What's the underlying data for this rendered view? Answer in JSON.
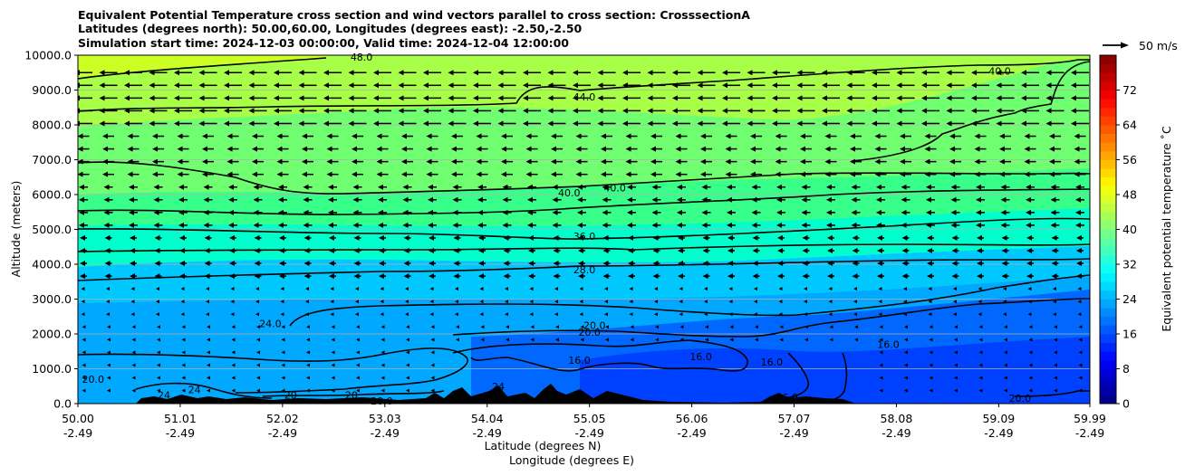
{
  "chart_data": {
    "type": "heatmap",
    "title": [
      "Equivalent Potential Temperature cross section and wind vectors parallel to cross section: CrosssectionA",
      "Latitudes (degrees north): 50.00,60.00, Longitudes (degrees east): -2.50,-2.50",
      "Simulation start time: 2024-12-03 00:00:00, Valid time: 2024-12-04 12:00:00"
    ],
    "xlabel": [
      "Latitude (degrees N)",
      "Longitude (degrees E)"
    ],
    "ylabel": "Altitude (meters)",
    "x_ticks": [
      {
        "lat": "50.00",
        "lon": "-2.49"
      },
      {
        "lat": "51.01",
        "lon": "-2.49"
      },
      {
        "lat": "52.02",
        "lon": "-2.49"
      },
      {
        "lat": "53.03",
        "lon": "-2.49"
      },
      {
        "lat": "54.04",
        "lon": "-2.49"
      },
      {
        "lat": "55.05",
        "lon": "-2.49"
      },
      {
        "lat": "56.06",
        "lon": "-2.49"
      },
      {
        "lat": "57.07",
        "lon": "-2.49"
      },
      {
        "lat": "58.08",
        "lon": "-2.49"
      },
      {
        "lat": "59.09",
        "lon": "-2.49"
      },
      {
        "lat": "59.99",
        "lon": "-2.49"
      }
    ],
    "xlim": [
      50.0,
      59.99
    ],
    "y_ticks": [
      "0.0",
      "1000.0",
      "2000.0",
      "3000.0",
      "4000.0",
      "5000.0",
      "6000.0",
      "7000.0",
      "8000.0",
      "9000.0",
      "10000.0"
    ],
    "ylim": [
      0,
      10000
    ],
    "grid": "horizontal",
    "colorbar": {
      "label": "Equivalent potential temperature ˚C",
      "ticks": [
        "0",
        "8",
        "16",
        "24",
        "32",
        "40",
        "48",
        "56",
        "64",
        "72"
      ],
      "range": [
        0,
        80
      ],
      "colormap": "jet"
    },
    "wind_key": {
      "label": "50 m/s",
      "speed": 50
    },
    "wind_direction": "southward (toward decreasing latitude)",
    "contour_labels": [
      {
        "text": "48.0",
        "lat": 52.8,
        "alt": 9950
      },
      {
        "text": "44.0",
        "lat": 55.0,
        "alt": 8800
      },
      {
        "text": "40.0",
        "lat": 59.1,
        "alt": 9550
      },
      {
        "text": "40.0",
        "lat": 54.85,
        "alt": 6050
      },
      {
        "text": "40.0",
        "lat": 55.3,
        "alt": 6200
      },
      {
        "text": "36.0",
        "lat": 55.0,
        "alt": 4800
      },
      {
        "text": "28.0",
        "lat": 55.0,
        "alt": 3850
      },
      {
        "text": "24.0",
        "lat": 51.9,
        "alt": 2300
      },
      {
        "text": "20.0",
        "lat": 55.05,
        "alt": 2050
      },
      {
        "text": "20.0",
        "lat": 55.1,
        "alt": 2250
      },
      {
        "text": "20.0",
        "lat": 50.15,
        "alt": 700
      },
      {
        "text": "16.0",
        "lat": 54.95,
        "alt": 1250
      },
      {
        "text": "16.0",
        "lat": 56.15,
        "alt": 1350
      },
      {
        "text": "16.0",
        "lat": 56.85,
        "alt": 1200
      },
      {
        "text": "16.0",
        "lat": 57.0,
        "alt": 180
      },
      {
        "text": "16.0",
        "lat": 58.0,
        "alt": 1700
      },
      {
        "text": "20.0",
        "lat": 59.3,
        "alt": 150
      },
      {
        "text": "20",
        "lat": 52.1,
        "alt": 250
      },
      {
        "text": "20",
        "lat": 52.7,
        "alt": 250
      },
      {
        "text": "20.0",
        "lat": 53.0,
        "alt": 80
      },
      {
        "text": "24",
        "lat": 51.15,
        "alt": 400
      },
      {
        "text": "24",
        "lat": 50.85,
        "alt": 250
      },
      {
        "text": "24",
        "lat": 54.15,
        "alt": 500
      }
    ]
  }
}
